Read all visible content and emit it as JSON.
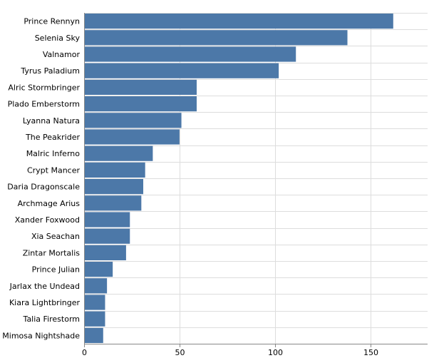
{
  "chart_data": {
    "type": "bar",
    "orientation": "horizontal",
    "title": "",
    "xlabel": "",
    "ylabel": "",
    "categories": [
      "Prince Rennyn",
      "Selenia Sky",
      "Valnamor",
      "Tyrus Paladium",
      "Alric Stormbringer",
      "Plado Emberstorm",
      "Lyanna Natura",
      "The Peakrider",
      "Malric Inferno",
      "Crypt Mancer",
      "Daria Dragonscale",
      "Archmage Arius",
      "Xander Foxwood",
      "Xia Seachan",
      "Zintar Mortalis",
      "Prince Julian",
      "Jarlax the Undead",
      "Kiara Lightbringer",
      "Talia Firestorm",
      "Mimosa Nightshade"
    ],
    "values": [
      162,
      138,
      111,
      102,
      59,
      59,
      51,
      50,
      36,
      32,
      31,
      30,
      24,
      24,
      22,
      15,
      12,
      11,
      11,
      10
    ],
    "xlim": [
      0,
      180
    ],
    "xticks": [
      0,
      50,
      100,
      150
    ],
    "xtick_labels": [
      "0",
      "50",
      "100",
      "150"
    ],
    "grid": true,
    "bar_color": "#4c78a8"
  }
}
